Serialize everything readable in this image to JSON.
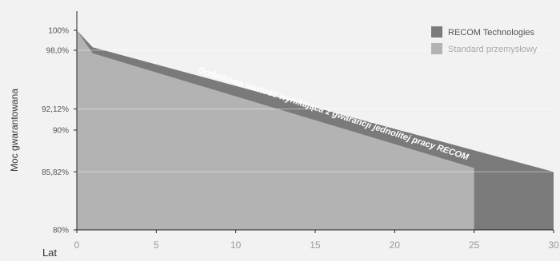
{
  "chart_data": {
    "type": "area",
    "ylabel": "Moc gwarantowana",
    "xlabel": "Lat",
    "xlim": [
      0,
      30
    ],
    "ylim": [
      80,
      100
    ],
    "x_ticks": [
      "0",
      "5",
      "10",
      "15",
      "20",
      "25",
      "30"
    ],
    "y_ticks": [
      {
        "value": 100,
        "label": "100%"
      },
      {
        "value": 98.0,
        "label": "98,0%"
      },
      {
        "value": 92.12,
        "label": "92,12%"
      },
      {
        "value": 90,
        "label": "90%"
      },
      {
        "value": 85.82,
        "label": "85,82%"
      },
      {
        "value": 80,
        "label": "80%"
      }
    ],
    "gridlines_at": [
      98.0,
      92.12,
      85.82
    ],
    "series": [
      {
        "name": "RECOM Technologies",
        "color": "#7a7a7a",
        "x": [
          0,
          1,
          30
        ],
        "y": [
          100,
          98.3,
          85.82
        ]
      },
      {
        "name": "Standard przemysłowy",
        "color": "#b3b3b3",
        "x": [
          0,
          1,
          25,
          25
        ],
        "y": [
          100,
          97.7,
          86.2,
          80
        ]
      }
    ],
    "annotation": "Dodatkowa wartość wynikająca z gwarancji jednolitej pracy RECOM",
    "legend_position": "top-right"
  }
}
